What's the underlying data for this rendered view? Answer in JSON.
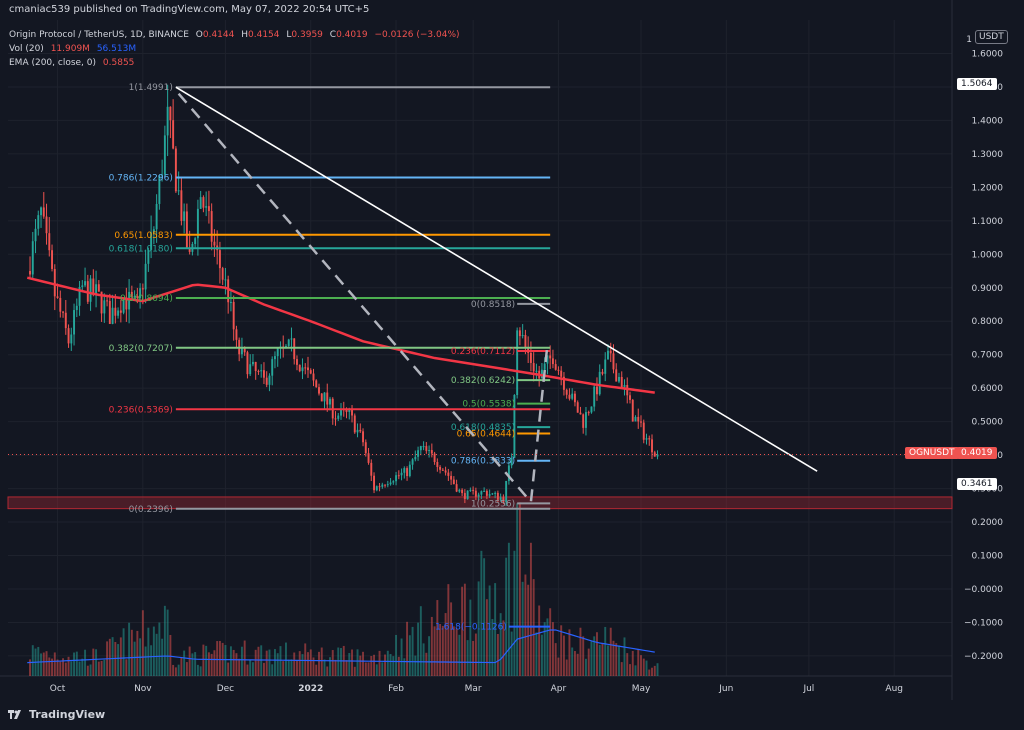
{
  "header": {
    "publisher": "cmaniac539 published on TradingView.com, May 07, 2022 20:54 UTC+5",
    "symbol_line": "Origin Protocol / TetherUS, 1D, BINANCE",
    "ohlc": {
      "o_label": "O",
      "o": "0.4144",
      "h_label": "H",
      "h": "0.4154",
      "l_label": "L",
      "l": "0.3959",
      "c_label": "C",
      "c": "0.4019",
      "change": "−0.0126 (−3.04%)"
    },
    "vol": {
      "label": "Vol (20)",
      "value": "11.909M",
      "ma": "56.513M"
    },
    "ema": {
      "label": "EMA (200, close, 0)",
      "value": "0.5855"
    }
  },
  "branding": {
    "logo_text": "TradingView"
  },
  "axis": {
    "currency": "USDT"
  },
  "price_tags": [
    {
      "text": "1.5064",
      "value": 1.5064,
      "bg": "#ffffff",
      "fg": "#131722"
    },
    {
      "text": "OGNUSDT",
      "value": 0.4019,
      "bg": "#ef5350",
      "fg": "#ffffff"
    },
    {
      "text": "0.4019",
      "value": 0.4019,
      "bg": "#ef5350",
      "fg": "#ffffff"
    },
    {
      "text": "0.3461",
      "value": 0.3461,
      "bg": "#ffffff",
      "fg": "#131722"
    }
  ],
  "chart_data": {
    "type": "candlestick",
    "x_ticks": [
      "Oct",
      "Nov",
      "Dec",
      "2022",
      "Feb",
      "Mar",
      "Apr",
      "May",
      "Jun",
      "Jul",
      "Aug"
    ],
    "y_ticks": [
      "1.6000",
      "1.5000",
      "1.4000",
      "1.3000",
      "1.2000",
      "1.1000",
      "1.0000",
      "0.9000",
      "0.8000",
      "0.7000",
      "0.6000",
      "0.5000",
      "0.4000",
      "0.3000",
      "0.2000",
      "0.1000",
      "−0.0000",
      "−0.1000",
      "−0.2000"
    ],
    "y_tick_values": [
      1.6,
      1.5,
      1.4,
      1.3,
      1.2,
      1.1,
      1.0,
      0.9,
      0.8,
      0.7,
      0.6,
      0.5,
      0.4,
      0.3,
      0.2,
      0.1,
      0.0,
      -0.1,
      -0.2
    ],
    "y_range": [
      -0.26,
      1.7
    ],
    "axis_top_label": "1",
    "price_anchors": [
      [
        "2021-09-20",
        0.95
      ],
      [
        "2021-09-25",
        1.12
      ],
      [
        "2021-09-30",
        0.88
      ],
      [
        "2021-10-05",
        0.74
      ],
      [
        "2021-10-10",
        0.9
      ],
      [
        "2021-10-15",
        0.88
      ],
      [
        "2021-10-20",
        0.82
      ],
      [
        "2021-10-25",
        0.87
      ],
      [
        "2021-10-30",
        0.84
      ],
      [
        "2021-11-05",
        1.08
      ],
      [
        "2021-11-10",
        1.4
      ],
      [
        "2021-11-14",
        1.18
      ],
      [
        "2021-11-18",
        0.98
      ],
      [
        "2021-11-22",
        1.18
      ],
      [
        "2021-11-27",
        1.02
      ],
      [
        "2021-12-02",
        0.88
      ],
      [
        "2021-12-05",
        0.72
      ],
      [
        "2021-12-10",
        0.66
      ],
      [
        "2021-12-15",
        0.62
      ],
      [
        "2021-12-20",
        0.7
      ],
      [
        "2021-12-25",
        0.72
      ],
      [
        "2021-12-30",
        0.65
      ],
      [
        "2022-01-05",
        0.58
      ],
      [
        "2022-01-10",
        0.52
      ],
      [
        "2022-01-15",
        0.52
      ],
      [
        "2022-01-20",
        0.44
      ],
      [
        "2022-01-24",
        0.3
      ],
      [
        "2022-01-30",
        0.33
      ],
      [
        "2022-02-05",
        0.35
      ],
      [
        "2022-02-10",
        0.42
      ],
      [
        "2022-02-15",
        0.39
      ],
      [
        "2022-02-20",
        0.34
      ],
      [
        "2022-02-25",
        0.28
      ],
      [
        "2022-03-05",
        0.29
      ],
      [
        "2022-03-12",
        0.27
      ],
      [
        "2022-03-15",
        0.4
      ],
      [
        "2022-03-17",
        0.8
      ],
      [
        "2022-03-20",
        0.72
      ],
      [
        "2022-03-25",
        0.63
      ],
      [
        "2022-03-30",
        0.7
      ],
      [
        "2022-04-05",
        0.58
      ],
      [
        "2022-04-10",
        0.5
      ],
      [
        "2022-04-14",
        0.58
      ],
      [
        "2022-04-19",
        0.69
      ],
      [
        "2022-04-24",
        0.62
      ],
      [
        "2022-04-28",
        0.52
      ],
      [
        "2022-05-03",
        0.45
      ],
      [
        "2022-05-07",
        0.4019
      ]
    ],
    "ema_anchors": [
      [
        "2021-09-20",
        0.93
      ],
      [
        "2021-10-15",
        0.88
      ],
      [
        "2021-11-01",
        0.86
      ],
      [
        "2021-11-20",
        0.91
      ],
      [
        "2021-12-01",
        0.9
      ],
      [
        "2021-12-15",
        0.85
      ],
      [
        "2022-01-01",
        0.8
      ],
      [
        "2022-01-20",
        0.74
      ],
      [
        "2022-02-15",
        0.69
      ],
      [
        "2022-03-10",
        0.66
      ],
      [
        "2022-03-25",
        0.64
      ],
      [
        "2022-04-15",
        0.61
      ],
      [
        "2022-05-07",
        0.5855
      ]
    ],
    "volume_anchors": [
      [
        "2021-09-20",
        0.04
      ],
      [
        "2021-10-15",
        0.03
      ],
      [
        "2021-11-10",
        0.09
      ],
      [
        "2021-11-12",
        0.03
      ],
      [
        "2021-12-05",
        0.04
      ],
      [
        "2022-01-24",
        0.03
      ],
      [
        "2022-03-15",
        0.16
      ],
      [
        "2022-03-17",
        0.24
      ],
      [
        "2022-03-25",
        0.09
      ],
      [
        "2022-04-05",
        0.05
      ],
      [
        "2022-04-19",
        0.06
      ],
      [
        "2022-05-07",
        0.015
      ]
    ],
    "volume_ma_anchors": [
      [
        "2021-09-20",
        -0.22
      ],
      [
        "2021-11-10",
        -0.2
      ],
      [
        "2021-11-20",
        -0.21
      ],
      [
        "2022-03-10",
        -0.22
      ],
      [
        "2022-03-17",
        -0.15
      ],
      [
        "2022-03-30",
        -0.12
      ],
      [
        "2022-04-15",
        -0.16
      ],
      [
        "2022-05-07",
        -0.19
      ]
    ],
    "fib_left": {
      "x_start": "2021-11-13",
      "x_end": "2022-03-29",
      "levels": [
        {
          "label": "1(1.4991)",
          "value": 1.4991,
          "color": "#9598a1"
        },
        {
          "label": "0.786(1.2296)",
          "value": 1.2296,
          "color": "#64b5f6"
        },
        {
          "label": "0.65(1.0583)",
          "value": 1.0583,
          "color": "#ff9800"
        },
        {
          "label": "0.618(1.0180)",
          "value": 1.018,
          "color": "#26a69a"
        },
        {
          "label": "0.5(0.8694)",
          "value": 0.8694,
          "color": "#4caf50"
        },
        {
          "label": "0.382(0.7207)",
          "value": 0.7207,
          "color": "#81c784"
        },
        {
          "label": "0.236(0.5369)",
          "value": 0.5369,
          "color": "#f23645"
        },
        {
          "label": "0(0.2396)",
          "value": 0.2396,
          "color": "#9598a1"
        }
      ]
    },
    "fib_right": {
      "x_start": "2022-03-17",
      "x_end": "2022-03-29",
      "levels": [
        {
          "label": "0(0.8518)",
          "value": 0.8518,
          "color": "#9598a1"
        },
        {
          "label": "0.236(0.7112)",
          "value": 0.7112,
          "color": "#f23645"
        },
        {
          "label": "0.382(0.6242)",
          "value": 0.6242,
          "color": "#81c784"
        },
        {
          "label": "0.5(0.5538)",
          "value": 0.5538,
          "color": "#4caf50"
        },
        {
          "label": "0.618(0.4835)",
          "value": 0.4835,
          "color": "#26a69a"
        },
        {
          "label": "0.65(0.4644)",
          "value": 0.4644,
          "color": "#ff9800"
        },
        {
          "label": "0.786(0.3833)",
          "value": 0.3833,
          "color": "#64b5f6"
        },
        {
          "label": "1(0.2556)",
          "value": 0.2556,
          "color": "#9598a1"
        },
        {
          "label": "1.618(−0.1126)",
          "value": -0.1126,
          "color": "#2962ff"
        }
      ]
    },
    "support_zone": {
      "from": 0.24,
      "to": 0.275
    },
    "trendline": {
      "from": [
        "2021-11-13",
        1.4991
      ],
      "to": [
        "2022-07-04",
        0.352
      ]
    },
    "dashed_leg": {
      "points": [
        [
          "2021-11-14",
          1.48
        ],
        [
          "2022-03-22",
          0.26
        ],
        [
          "2022-03-28",
          0.73
        ]
      ]
    },
    "last_price": 0.4019
  },
  "colors": {
    "background": "#131722",
    "grid": "#1e222d",
    "up": "#26a69a",
    "down": "#ef5350",
    "ema": "#f23645",
    "volume_ma": "#2962ff",
    "text": "#d1d4dc"
  }
}
